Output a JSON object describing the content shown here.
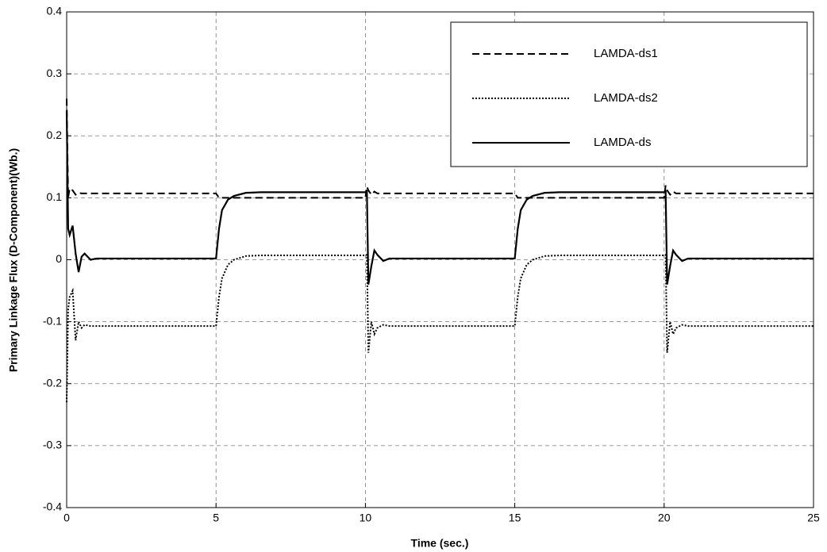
{
  "chart_data": {
    "type": "line",
    "x_label": "Time (sec.)",
    "y_label": "Primary Linkage Flux (D-Component)(Wb.)",
    "x": [
      0,
      0.05,
      0.1,
      0.2,
      0.3,
      0.4,
      0.5,
      0.6,
      0.8,
      1,
      5,
      5.1,
      5.2,
      5.4,
      5.6,
      6,
      6.5,
      10,
      10.05,
      10.1,
      10.2,
      10.3,
      10.4,
      10.6,
      10.8,
      11,
      15,
      15.1,
      15.2,
      15.4,
      15.6,
      16,
      16.5,
      20,
      20.05,
      20.1,
      20.2,
      20.3,
      20.4,
      20.6,
      20.8,
      21,
      25
    ],
    "series": [
      {
        "name": "LAMDA-ds1",
        "color": "#000000",
        "line_style": "dashed",
        "values": [
          0.26,
          0.1,
          0.115,
          0.112,
          0.105,
          0.108,
          0.107,
          0.107,
          0.107,
          0.107,
          0.107,
          0.1,
          0.1,
          0.1,
          0.1,
          0.1,
          0.1,
          0.1,
          0.118,
          0.112,
          0.105,
          0.11,
          0.107,
          0.107,
          0.107,
          0.107,
          0.107,
          0.1,
          0.1,
          0.1,
          0.1,
          0.1,
          0.1,
          0.1,
          0.12,
          0.112,
          0.105,
          0.11,
          0.107,
          0.107,
          0.107,
          0.107,
          0.107
        ]
      },
      {
        "name": "LAMDA-ds2",
        "color": "#000000",
        "line_style": "dotted",
        "values": [
          -0.23,
          -0.08,
          -0.06,
          -0.05,
          -0.13,
          -0.1,
          -0.11,
          -0.105,
          -0.107,
          -0.107,
          -0.107,
          -0.06,
          -0.03,
          -0.008,
          0,
          0.006,
          0.007,
          0.007,
          0.008,
          -0.15,
          -0.1,
          -0.12,
          -0.11,
          -0.105,
          -0.107,
          -0.107,
          -0.107,
          -0.06,
          -0.03,
          -0.008,
          0,
          0.006,
          0.007,
          0.007,
          0.008,
          -0.15,
          -0.1,
          -0.12,
          -0.11,
          -0.105,
          -0.107,
          -0.107,
          -0.107
        ]
      },
      {
        "name": "LAMDA-ds",
        "color": "#000000",
        "line_style": "solid",
        "values": [
          0.24,
          0.05,
          0.04,
          0.055,
          0.01,
          -0.02,
          0.005,
          0.01,
          0,
          0.002,
          0.002,
          0.05,
          0.08,
          0.097,
          0.103,
          0.108,
          0.109,
          0.109,
          0.11,
          -0.04,
          -0.01,
          0.015,
          0.008,
          -0.002,
          0.002,
          0.002,
          0.002,
          0.05,
          0.08,
          0.097,
          0.103,
          0.108,
          0.109,
          0.109,
          0.11,
          -0.04,
          -0.01,
          0.015,
          0.008,
          -0.002,
          0.002,
          0.002,
          0.002
        ]
      }
    ],
    "xlim": [
      0,
      25
    ],
    "xticks": [
      0,
      5,
      10,
      15,
      20,
      25
    ],
    "ylim": [
      -0.4,
      0.4
    ],
    "yticks": [
      -0.4,
      -0.3,
      -0.2,
      -0.1,
      0,
      0.1,
      0.2,
      0.3,
      0.4
    ],
    "grid": true,
    "legend": "upper right"
  }
}
